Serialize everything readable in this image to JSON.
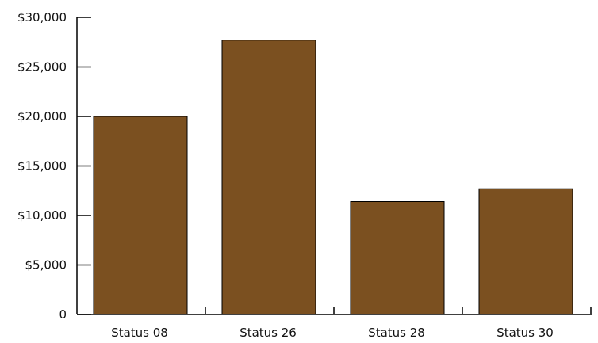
{
  "chart_data": {
    "type": "bar",
    "title": "",
    "xlabel": "",
    "ylabel": "",
    "categories": [
      "Status 08",
      "Status 26",
      "Status 28",
      "Status 30"
    ],
    "values": [
      20000,
      27700,
      11400,
      12700
    ],
    "ylim": [
      0,
      30000
    ],
    "yticks": [
      0,
      5000,
      10000,
      15000,
      20000,
      25000,
      30000
    ],
    "ytick_labels": [
      "0",
      "$5,000",
      "$10,000",
      "$15,000",
      "$20,000",
      "$25,000",
      "$30,000"
    ],
    "bar_color": "#7b5020",
    "grid": false,
    "legend": "none"
  }
}
